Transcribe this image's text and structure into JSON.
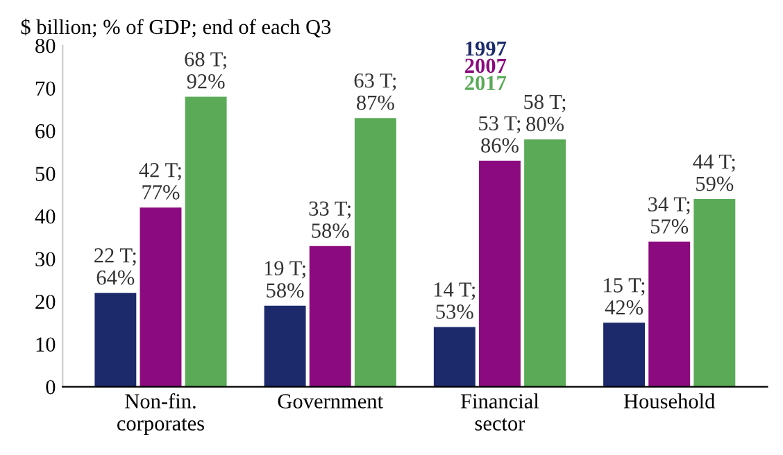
{
  "chart_data": {
    "type": "bar",
    "title": "$ billion; % of GDP; end of each Q3",
    "categories": [
      "Non-fin.\ncorporates",
      "Government",
      "Financial\nsector",
      "Household"
    ],
    "series": [
      {
        "name": "1997",
        "color": "#1c2a6b",
        "values": [
          22,
          19,
          14,
          15
        ],
        "value_labels": [
          "22 T;\n64%",
          "19 T;\n58%",
          "14 T;\n53%",
          "15 T;\n42%"
        ]
      },
      {
        "name": "2007",
        "color": "#8b0a7f",
        "values": [
          42,
          33,
          53,
          34
        ],
        "value_labels": [
          "42 T;\n77%",
          "33 T;\n58%",
          "53 T;\n86%",
          "34 T;\n57%"
        ]
      },
      {
        "name": "2017",
        "color": "#5aaa57",
        "values": [
          68,
          63,
          58,
          44
        ],
        "value_labels": [
          "68 T;\n92%",
          "63 T;\n87%",
          "58 T;\n80%",
          "44 T;\n59%"
        ]
      }
    ],
    "ylim": [
      0,
      80
    ],
    "yticks": [
      0,
      10,
      20,
      30,
      40,
      50,
      60,
      70,
      80
    ],
    "grid": false,
    "legend": "top"
  }
}
